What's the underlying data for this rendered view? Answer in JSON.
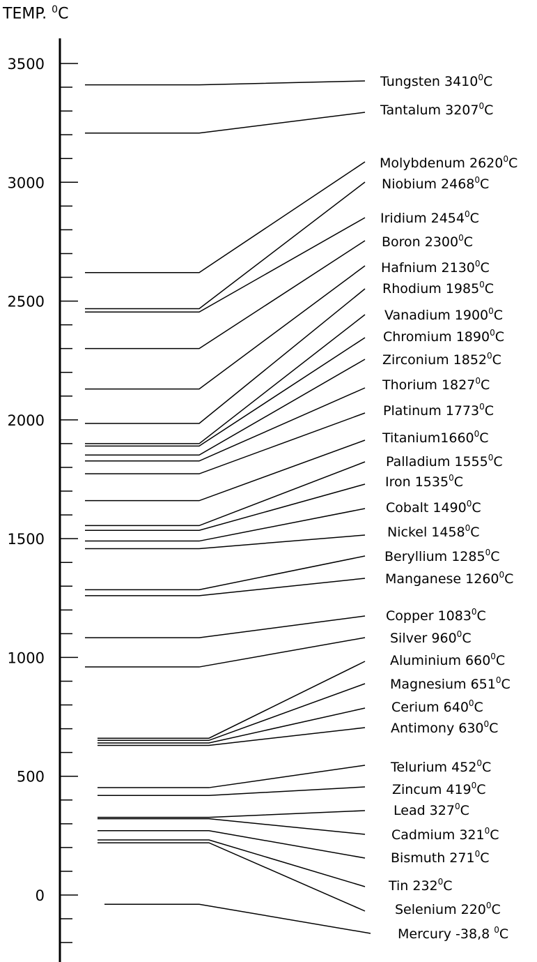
{
  "chart_data": {
    "type": "scale",
    "title_text": "TEMP.",
    "title_sup": "0",
    "title_unit": "C",
    "axis_ticks": [
      "0",
      "500",
      "1000",
      "1500",
      "2000",
      "2500",
      "3000",
      "3500"
    ],
    "ylim": [
      -250,
      3600
    ],
    "items": [
      {
        "name": "Tungsten",
        "value": 3410,
        "label": "Tungsten 3410",
        "sup": "0",
        "unit": "C"
      },
      {
        "name": "Tantalum",
        "value": 3207,
        "label": "Tantalum 3207",
        "sup": "0",
        "unit": "C"
      },
      {
        "name": "Molybdenum",
        "value": 2620,
        "label": "Molybdenum 2620",
        "sup": "0",
        "unit": "C"
      },
      {
        "name": "Niobium",
        "value": 2468,
        "label": "Niobium 2468",
        "sup": "0",
        "unit": "C"
      },
      {
        "name": "Iridium",
        "value": 2454,
        "label": "Iridium 2454",
        "sup": "0",
        "unit": "C"
      },
      {
        "name": "Boron",
        "value": 2300,
        "label": "Boron 2300",
        "sup": "0",
        "unit": "C"
      },
      {
        "name": "Hafnium",
        "value": 2130,
        "label": "Hafnium 2130",
        "sup": "0",
        "unit": "C"
      },
      {
        "name": "Rhodium",
        "value": 1985,
        "label": "Rhodium 1985",
        "sup": "0",
        "unit": "C"
      },
      {
        "name": "Vanadium",
        "value": 1900,
        "label": "Vanadium 1900",
        "sup": "0",
        "unit": "C"
      },
      {
        "name": "Chromium",
        "value": 1890,
        "label": "Chromium 1890",
        "sup": "0",
        "unit": "C"
      },
      {
        "name": "Zirconium",
        "value": 1852,
        "label": "Zirconium 1852",
        "sup": "0",
        "unit": "C"
      },
      {
        "name": "Thorium",
        "value": 1827,
        "label": "Thorium 1827",
        "sup": "0",
        "unit": "C"
      },
      {
        "name": "Platinum",
        "value": 1773,
        "label": "Platinum 1773",
        "sup": "0",
        "unit": "C"
      },
      {
        "name": "Titanium",
        "value": 1660,
        "label": "Titanium1660",
        "sup": "0",
        "unit": "C"
      },
      {
        "name": "Palladium",
        "value": 1555,
        "label": "Palladium 1555",
        "sup": "0",
        "unit": "C"
      },
      {
        "name": "Iron",
        "value": 1535,
        "label": "Iron 1535",
        "sup": "0",
        "unit": "C"
      },
      {
        "name": "Cobalt",
        "value": 1490,
        "label": "Cobalt 1490",
        "sup": "0",
        "unit": "C"
      },
      {
        "name": "Nickel",
        "value": 1458,
        "label": "Nickel 1458",
        "sup": "0",
        "unit": "C"
      },
      {
        "name": "Beryllium",
        "value": 1285,
        "label": "Beryllium 1285",
        "sup": "0",
        "unit": "C"
      },
      {
        "name": "Manganese",
        "value": 1260,
        "label": "Manganese 1260",
        "sup": "0",
        "unit": "C"
      },
      {
        "name": "Copper",
        "value": 1083,
        "label": "Copper 1083",
        "sup": "0",
        "unit": "C"
      },
      {
        "name": "Silver",
        "value": 960,
        "label": "Silver 960",
        "sup": "0",
        "unit": "C"
      },
      {
        "name": "Aluminium",
        "value": 660,
        "label": "Aluminium 660",
        "sup": "0",
        "unit": "C"
      },
      {
        "name": "Magnesium",
        "value": 651,
        "label": "Magnesium 651",
        "sup": "0",
        "unit": "C"
      },
      {
        "name": "Cerium",
        "value": 640,
        "label": "Cerium 640",
        "sup": "0",
        "unit": "C"
      },
      {
        "name": "Antimony",
        "value": 630,
        "label": "Antimony 630",
        "sup": "0",
        "unit": "C"
      },
      {
        "name": "Telurium",
        "value": 452,
        "label": "Telurium 452",
        "sup": "0",
        "unit": "C"
      },
      {
        "name": "Zincum",
        "value": 419,
        "label": "Zincum 419",
        "sup": "0",
        "unit": "C"
      },
      {
        "name": "Lead",
        "value": 327,
        "label": "Lead 327",
        "sup": "0",
        "unit": "C"
      },
      {
        "name": "Cadmium",
        "value": 321,
        "label": "Cadmium 321",
        "sup": "0",
        "unit": "C"
      },
      {
        "name": "Bismuth",
        "value": 271,
        "label": "Bismuth 271",
        "sup": "0",
        "unit": "C"
      },
      {
        "name": "Tin",
        "value": 232,
        "label": "Tin 232",
        "sup": "0",
        "unit": "C"
      },
      {
        "name": "Selenium",
        "value": 220,
        "label": "Selenium 220",
        "sup": "0",
        "unit": "C"
      },
      {
        "name": "Mercury",
        "value": -38.8,
        "label": "Mercury -38,8 ",
        "sup": "0",
        "unit": "C"
      }
    ]
  }
}
